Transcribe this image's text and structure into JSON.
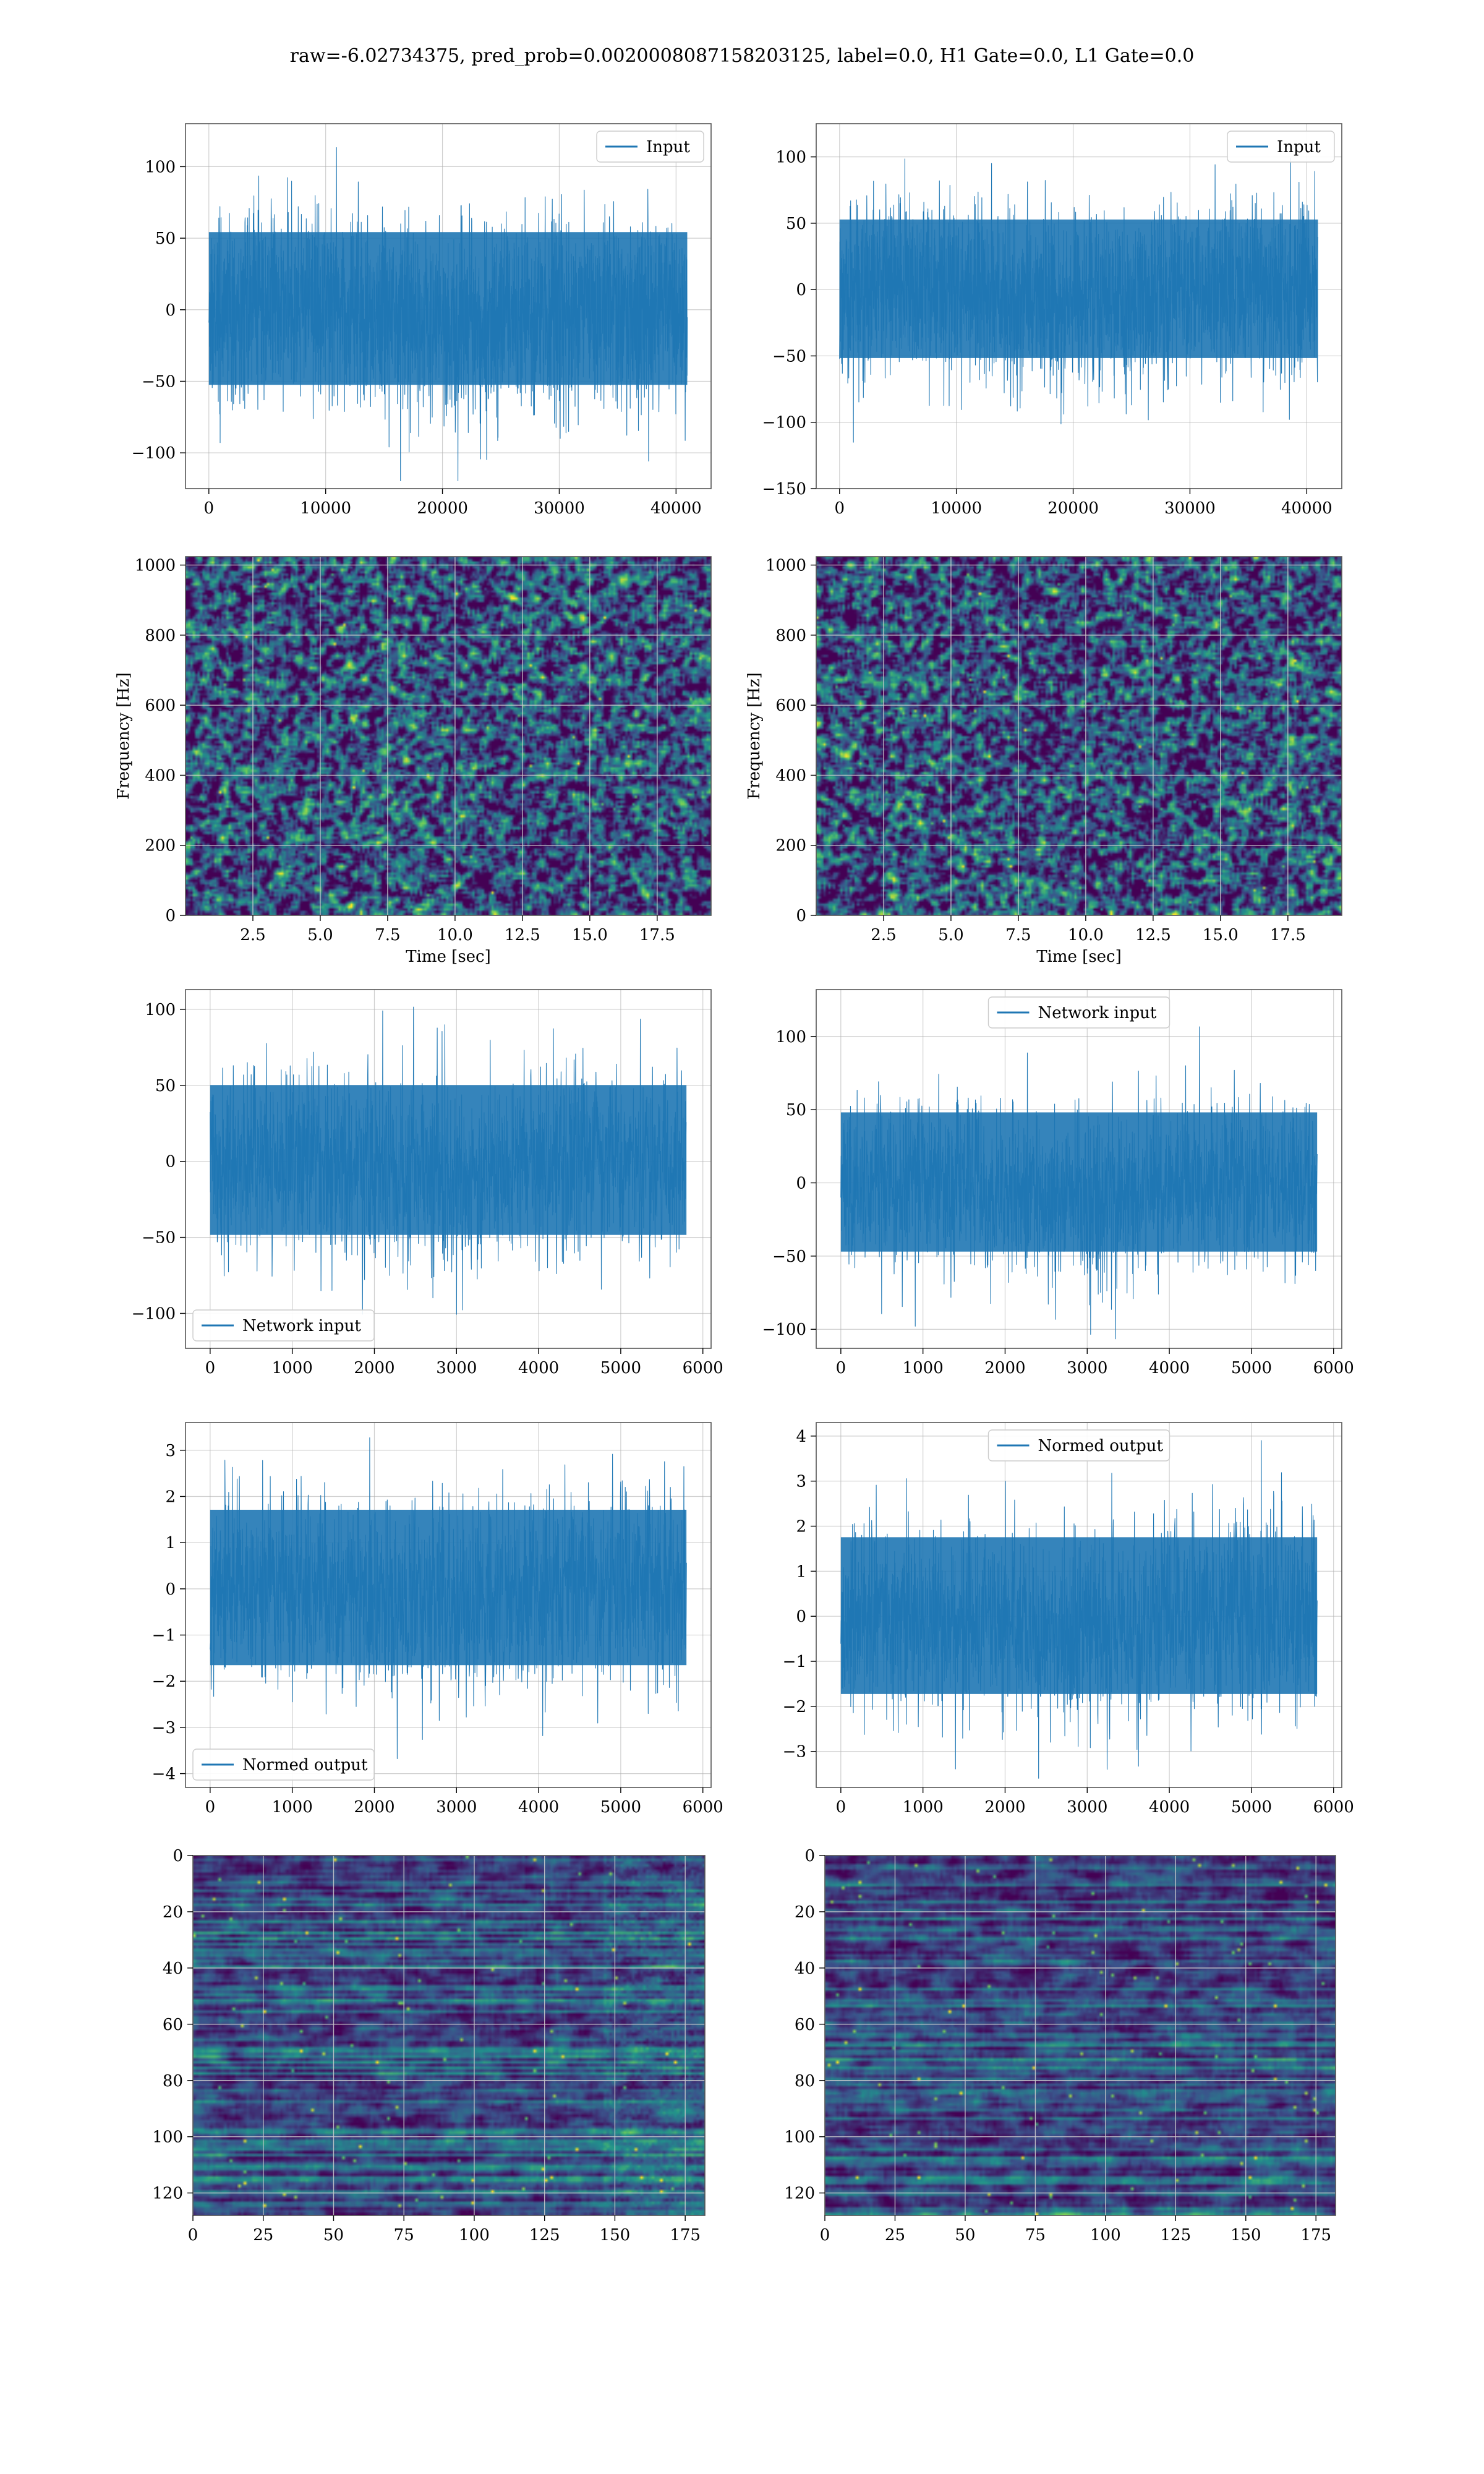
{
  "figure_title": "raw=-6.02734375, pred_prob=0.0020008087158203125, label=0.0, H1 Gate=0.0, L1 Gate=0.0",
  "colors": {
    "line": "#1f77b4",
    "grid": "#b0b0b0",
    "viridis": [
      "#440154",
      "#3b528b",
      "#21918c",
      "#5ec962",
      "#fde725"
    ]
  },
  "chart_data": [
    {
      "id": "input-h1",
      "type": "line",
      "density": "full",
      "x": [
        0,
        40960
      ],
      "amplitude": 92,
      "trend": [
        -3,
        3
      ],
      "xlim": [
        -2000,
        43000
      ],
      "ylim": [
        -125,
        130
      ],
      "xticks": [
        0,
        10000,
        20000,
        30000,
        40000
      ],
      "yticks": [
        -100,
        -50,
        0,
        50,
        100
      ],
      "series": [
        {
          "name": "Input"
        }
      ],
      "legend": "upper right",
      "xlabel": "",
      "ylabel": "",
      "grid": true
    },
    {
      "id": "input-l1",
      "type": "line",
      "density": "full",
      "x": [
        0,
        40960
      ],
      "amplitude": 90,
      "trend": [
        -4,
        2
      ],
      "xlim": [
        -2000,
        43000
      ],
      "ylim": [
        -150,
        125
      ],
      "xticks": [
        0,
        10000,
        20000,
        30000,
        40000
      ],
      "yticks": [
        -150,
        -100,
        -50,
        0,
        50,
        100
      ],
      "series": [
        {
          "name": "Input"
        }
      ],
      "legend": "upper right",
      "xlabel": "",
      "ylabel": "",
      "grid": true
    },
    {
      "id": "spectrogram-h1",
      "type": "heatmap",
      "rows": 150,
      "cols": 220,
      "seed": 11,
      "xlim": [
        0,
        19.5
      ],
      "ylim": [
        0,
        1024
      ],
      "xticks": [
        2.5,
        5.0,
        7.5,
        10.0,
        12.5,
        15.0,
        17.5
      ],
      "xtick_labels": [
        "2.5",
        "5.0",
        "7.5",
        "10.0",
        "12.5",
        "15.0",
        "17.5"
      ],
      "yticks": [
        0,
        200,
        400,
        600,
        800,
        1000
      ],
      "xlabel": "Time [sec]",
      "ylabel": "Frequency [Hz]",
      "grid": true
    },
    {
      "id": "spectrogram-l1",
      "type": "heatmap",
      "rows": 150,
      "cols": 220,
      "seed": 23,
      "xlim": [
        0,
        19.5
      ],
      "ylim": [
        0,
        1024
      ],
      "xticks": [
        2.5,
        5.0,
        7.5,
        10.0,
        12.5,
        15.0,
        17.5
      ],
      "xtick_labels": [
        "2.5",
        "5.0",
        "7.5",
        "10.0",
        "12.5",
        "15.0",
        "17.5"
      ],
      "yticks": [
        0,
        200,
        400,
        600,
        800,
        1000
      ],
      "xlabel": "Time [sec]",
      "ylabel": "Frequency [Hz]",
      "grid": true
    },
    {
      "id": "network-input-h1",
      "type": "line",
      "density": "sparse",
      "x": [
        0,
        5800
      ],
      "amplitude": 85,
      "trend": [
        -3,
        3
      ],
      "xlim": [
        -300,
        6100
      ],
      "ylim": [
        -123,
        113
      ],
      "xticks": [
        0,
        1000,
        2000,
        3000,
        4000,
        5000,
        6000
      ],
      "yticks": [
        -100,
        -50,
        0,
        50,
        100
      ],
      "series": [
        {
          "name": "Network input"
        }
      ],
      "legend": "lower left",
      "xlabel": "",
      "ylabel": "",
      "grid": true
    },
    {
      "id": "network-input-l1",
      "type": "line",
      "density": "sparse",
      "x": [
        0,
        5800
      ],
      "amplitude": 82,
      "trend": [
        -4,
        2
      ],
      "xlim": [
        -300,
        6100
      ],
      "ylim": [
        -113,
        132
      ],
      "xticks": [
        0,
        1000,
        2000,
        3000,
        4000,
        5000,
        6000
      ],
      "yticks": [
        -100,
        -50,
        0,
        50,
        100
      ],
      "series": [
        {
          "name": "Network input"
        }
      ],
      "legend": "upper center",
      "xlabel": "",
      "ylabel": "",
      "grid": true
    },
    {
      "id": "normed-output-h1",
      "type": "line",
      "density": "sparse",
      "x": [
        0,
        5800
      ],
      "amplitude": 2.9,
      "trend": [
        -0.1,
        0.1
      ],
      "xlim": [
        -300,
        6100
      ],
      "ylim": [
        -4.3,
        3.6
      ],
      "xticks": [
        0,
        1000,
        2000,
        3000,
        4000,
        5000,
        6000
      ],
      "yticks": [
        -4,
        -3,
        -2,
        -1,
        0,
        1,
        2,
        3
      ],
      "series": [
        {
          "name": "Normed output"
        }
      ],
      "legend": "lower left",
      "xlabel": "",
      "ylabel": "",
      "grid": true
    },
    {
      "id": "normed-output-l1",
      "type": "line",
      "density": "sparse",
      "x": [
        0,
        5800
      ],
      "amplitude": 3.0,
      "trend": [
        -0.1,
        0.05
      ],
      "xlim": [
        -300,
        6100
      ],
      "ylim": [
        -3.8,
        4.3
      ],
      "xticks": [
        0,
        1000,
        2000,
        3000,
        4000,
        5000,
        6000
      ],
      "yticks": [
        -3,
        -2,
        -1,
        0,
        1,
        2,
        3,
        4
      ],
      "series": [
        {
          "name": "Normed output"
        }
      ],
      "legend": "upper center",
      "xlabel": "",
      "ylabel": "",
      "grid": true
    },
    {
      "id": "feature-map-h1",
      "type": "heatmap",
      "rows": 128,
      "cols": 182,
      "seed": 37,
      "streaks": true,
      "brighten_right": true,
      "xlim": [
        0,
        182
      ],
      "ylim": [
        128,
        0
      ],
      "xticks": [
        0,
        25,
        50,
        75,
        100,
        125,
        150,
        175
      ],
      "yticks": [
        0,
        20,
        40,
        60,
        80,
        100,
        120
      ],
      "xlabel": "",
      "ylabel": "",
      "grid": true
    },
    {
      "id": "feature-map-l1",
      "type": "heatmap",
      "rows": 128,
      "cols": 182,
      "seed": 53,
      "streaks": true,
      "brighten_right": false,
      "xlim": [
        0,
        182
      ],
      "ylim": [
        128,
        0
      ],
      "xticks": [
        0,
        25,
        50,
        75,
        100,
        125,
        150,
        175
      ],
      "yticks": [
        0,
        20,
        40,
        60,
        80,
        100,
        120
      ],
      "xlabel": "",
      "ylabel": "",
      "grid": true
    }
  ]
}
